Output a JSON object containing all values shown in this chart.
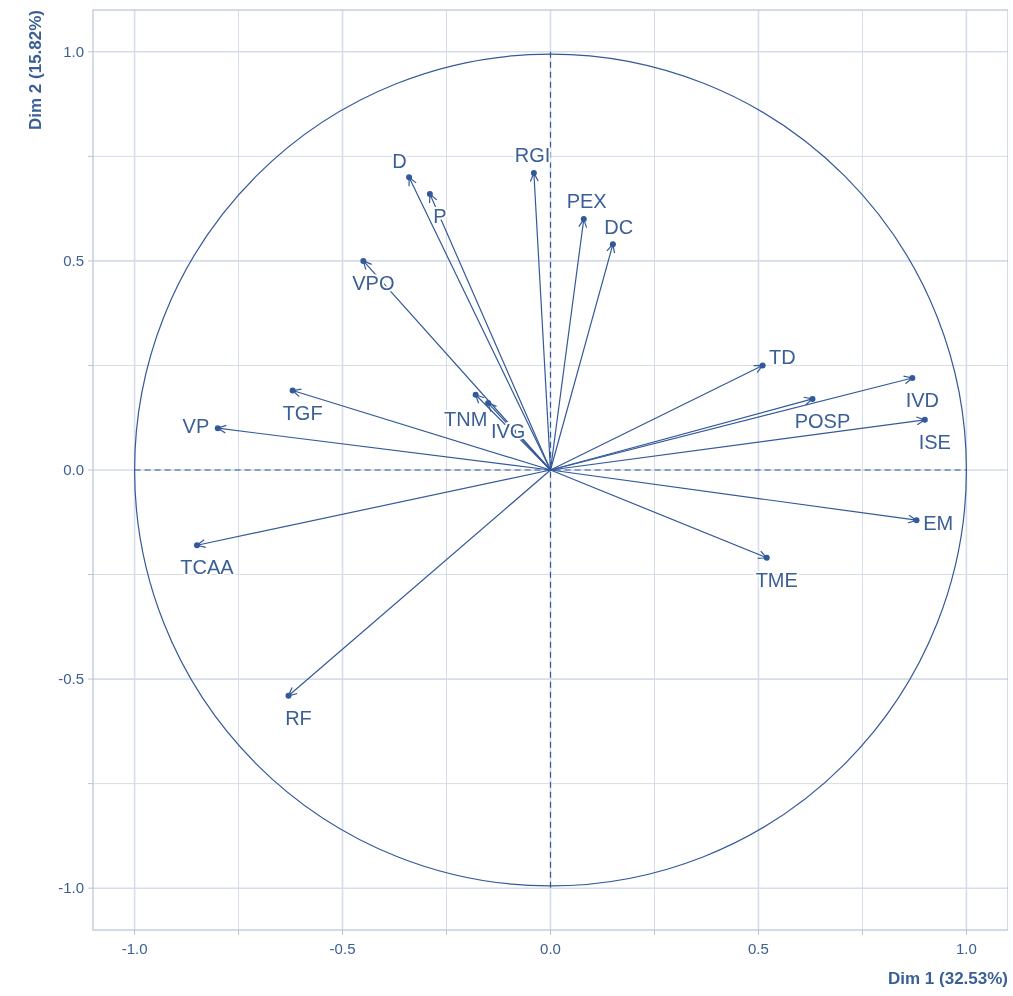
{
  "chart_data": {
    "type": "scatter",
    "xlabel": "Dim 1 (32.53%)",
    "ylabel": "Dim 2 (15.82%)",
    "xlim": [
      -1.1,
      1.1
    ],
    "ylim": [
      -1.1,
      1.1
    ],
    "xticks": [
      {
        "value": -1,
        "label": "-1.0"
      },
      {
        "value": -0.75,
        "label": null
      },
      {
        "value": -0.5,
        "label": "-0.5"
      },
      {
        "value": -0.25,
        "label": null
      },
      {
        "value": 0,
        "label": "0.0"
      },
      {
        "value": 0.25,
        "label": null
      },
      {
        "value": 0.5,
        "label": "0.5"
      },
      {
        "value": 0.75,
        "label": null
      },
      {
        "value": 1,
        "label": "1.0"
      }
    ],
    "yticks": [
      {
        "value": -1,
        "label": "-1.0"
      },
      {
        "value": -0.75,
        "label": null
      },
      {
        "value": -0.5,
        "label": "-0.5"
      },
      {
        "value": -0.25,
        "label": null
      },
      {
        "value": 0,
        "label": "0.0"
      },
      {
        "value": 0.25,
        "label": null
      },
      {
        "value": 0.5,
        "label": "0.5"
      },
      {
        "value": 0.75,
        "label": null
      },
      {
        "value": 1,
        "label": "1.0"
      }
    ],
    "grid": true,
    "x": [
      -0.34,
      -0.29,
      -0.04,
      0.08,
      0.15,
      -0.45,
      0.51,
      0.87,
      0.63,
      0.9,
      0.88,
      0.52,
      -0.63,
      -0.85,
      -0.8,
      -0.62,
      -0.18,
      -0.15
    ],
    "series": [
      {
        "color": "#34599a",
        "values": [
          0.7,
          0.66,
          0.71,
          0.6,
          0.54,
          0.5,
          0.25,
          0.22,
          0.17,
          0.12,
          -0.12,
          -0.21,
          -0.54,
          -0.18,
          0.1,
          0.19,
          0.18,
          0.16
        ]
      }
    ],
    "annotations": [
      {
        "text": "D",
        "x": -0.34,
        "y": 0.7
      },
      {
        "text": "P",
        "x": -0.29,
        "y": 0.66
      },
      {
        "text": "RGI",
        "x": -0.04,
        "y": 0.71
      },
      {
        "text": "PEX",
        "x": 0.08,
        "y": 0.6
      },
      {
        "text": "DC",
        "x": 0.15,
        "y": 0.54
      },
      {
        "text": "VPO",
        "x": -0.45,
        "y": 0.5
      },
      {
        "text": "TD",
        "x": 0.51,
        "y": 0.25
      },
      {
        "text": "IVD",
        "x": 0.87,
        "y": 0.22
      },
      {
        "text": "POSP",
        "x": 0.63,
        "y": 0.17
      },
      {
        "text": "ISE",
        "x": 0.9,
        "y": 0.12
      },
      {
        "text": "EM",
        "x": 0.88,
        "y": -0.12
      },
      {
        "text": "TME",
        "x": 0.52,
        "y": -0.21
      },
      {
        "text": "RF",
        "x": -0.63,
        "y": -0.54
      },
      {
        "text": "TCAA",
        "x": -0.85,
        "y": -0.18
      },
      {
        "text": "VP",
        "x": -0.8,
        "y": 0.1
      },
      {
        "text": "TGF",
        "x": -0.62,
        "y": 0.19
      },
      {
        "text": "TNM",
        "x": -0.18,
        "y": 0.18
      },
      {
        "text": "IVG",
        "x": -0.15,
        "y": 0.16
      }
    ]
  }
}
